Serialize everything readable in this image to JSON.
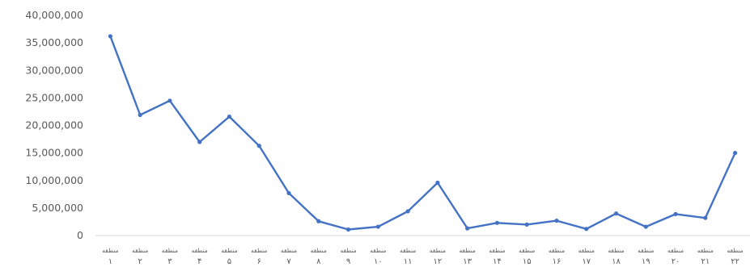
{
  "chart_data": {
    "type": "line",
    "categories": [
      "منطقه ۱",
      "منطقه ۲",
      "منطقه ۳",
      "منطقه ۴",
      "منطقه ۵",
      "منطقه ۶",
      "منطقه ۷",
      "منطقه ۸",
      "منطقه ۹",
      "منطقه ۱۰",
      "منطقه ۱۱",
      "منطقه ۱۲",
      "منطقه ۱۳",
      "منطقه ۱۴",
      "منطقه ۱۵",
      "منطقه ۱۶",
      "منطقه ۱۷",
      "منطقه ۱۸",
      "منطقه ۱۹",
      "منطقه ۲۰",
      "منطقه ۲۱",
      "منطقه ۲۲"
    ],
    "category_word": "منطقه",
    "category_numbers": [
      "۱",
      "۲",
      "۳",
      "۴",
      "۵",
      "۶",
      "۷",
      "۸",
      "۹",
      "۱۰",
      "۱۱",
      "۱۲",
      "۱۳",
      "۱۴",
      "۱۵",
      "۱۶",
      "۱۷",
      "۱۸",
      "۱۹",
      "۲۰",
      "۲۱",
      "۲۲"
    ],
    "series": [
      {
        "color": "#4472C4",
        "values": [
          36200000,
          21900000,
          24500000,
          17000000,
          21600000,
          16300000,
          7700000,
          2600000,
          1100000,
          1600000,
          4400000,
          9600000,
          1300000,
          2300000,
          2000000,
          2700000,
          1200000,
          4000000,
          1600000,
          3900000,
          3200000,
          15000000
        ]
      }
    ],
    "ylim": [
      0,
      40000000
    ],
    "yticks": [
      0,
      5000000,
      10000000,
      15000000,
      20000000,
      25000000,
      30000000,
      35000000,
      40000000
    ],
    "ytick_labels": [
      "0",
      "5,000,000",
      "10,000,000",
      "15,000,000",
      "20,000,000",
      "25,000,000",
      "30,000,000",
      "35,000,000",
      "40,000,000"
    ],
    "grid": false,
    "legend": "none",
    "title": "",
    "xlabel": "",
    "ylabel": ""
  }
}
